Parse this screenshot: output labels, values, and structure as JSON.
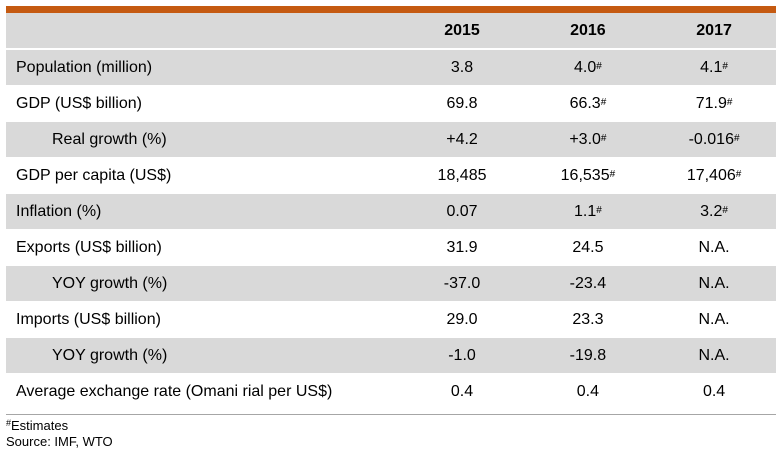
{
  "table": {
    "headers": [
      "",
      "2015",
      "2016",
      "2017"
    ],
    "rows": [
      {
        "label": "Population (million)",
        "indent": false,
        "shade": true,
        "cells": [
          {
            "v": "3.8",
            "s": ""
          },
          {
            "v": "4.0",
            "s": "#"
          },
          {
            "v": "4.1",
            "s": "#"
          }
        ]
      },
      {
        "label": "GDP (US$ billion)",
        "indent": false,
        "shade": false,
        "cells": [
          {
            "v": "69.8",
            "s": ""
          },
          {
            "v": "66.3",
            "s": "#"
          },
          {
            "v": "71.9",
            "s": "#"
          }
        ]
      },
      {
        "label": "Real growth (%)",
        "indent": true,
        "shade": true,
        "cells": [
          {
            "v": "+4.2",
            "s": ""
          },
          {
            "v": "+3.0",
            "s": "#"
          },
          {
            "v": "-0.016",
            "s": "#"
          }
        ]
      },
      {
        "label": "GDP per capita (US$)",
        "indent": false,
        "shade": false,
        "cells": [
          {
            "v": "18,485",
            "s": ""
          },
          {
            "v": "16,535",
            "s": "#"
          },
          {
            "v": "17,406",
            "s": "#"
          }
        ]
      },
      {
        "label": "Inflation (%)",
        "indent": false,
        "shade": true,
        "cells": [
          {
            "v": "0.07",
            "s": ""
          },
          {
            "v": "1.1",
            "s": "#"
          },
          {
            "v": "3.2",
            "s": "#"
          }
        ]
      },
      {
        "label": "Exports (US$ billion)",
        "indent": false,
        "shade": false,
        "cells": [
          {
            "v": "31.9",
            "s": ""
          },
          {
            "v": "24.5",
            "s": ""
          },
          {
            "v": "N.A.",
            "s": ""
          }
        ]
      },
      {
        "label": "YOY growth (%)",
        "indent": true,
        "shade": true,
        "cells": [
          {
            "v": "-37.0",
            "s": ""
          },
          {
            "v": "-23.4",
            "s": ""
          },
          {
            "v": "N.A.",
            "s": ""
          }
        ]
      },
      {
        "label": "Imports (US$ billion)",
        "indent": false,
        "shade": false,
        "cells": [
          {
            "v": "29.0",
            "s": ""
          },
          {
            "v": "23.3",
            "s": ""
          },
          {
            "v": "N.A.",
            "s": ""
          }
        ]
      },
      {
        "label": "YOY growth (%)",
        "indent": true,
        "shade": true,
        "cells": [
          {
            "v": "-1.0",
            "s": ""
          },
          {
            "v": "-19.8",
            "s": ""
          },
          {
            "v": "N.A.",
            "s": ""
          }
        ]
      },
      {
        "label": "Average exchange rate (Omani rial per US$)",
        "indent": false,
        "shade": false,
        "cells": [
          {
            "v": "0.4",
            "s": ""
          },
          {
            "v": "0.4",
            "s": ""
          },
          {
            "v": "0.4",
            "s": ""
          }
        ]
      }
    ]
  },
  "footnote": {
    "mark": "#",
    "text": "Estimates"
  },
  "source": "Source: IMF, WTO",
  "colors": {
    "accent_bar": "#c55a11",
    "header_fill": "#d9d9d9",
    "shaded_row": "#d9d9d9"
  }
}
